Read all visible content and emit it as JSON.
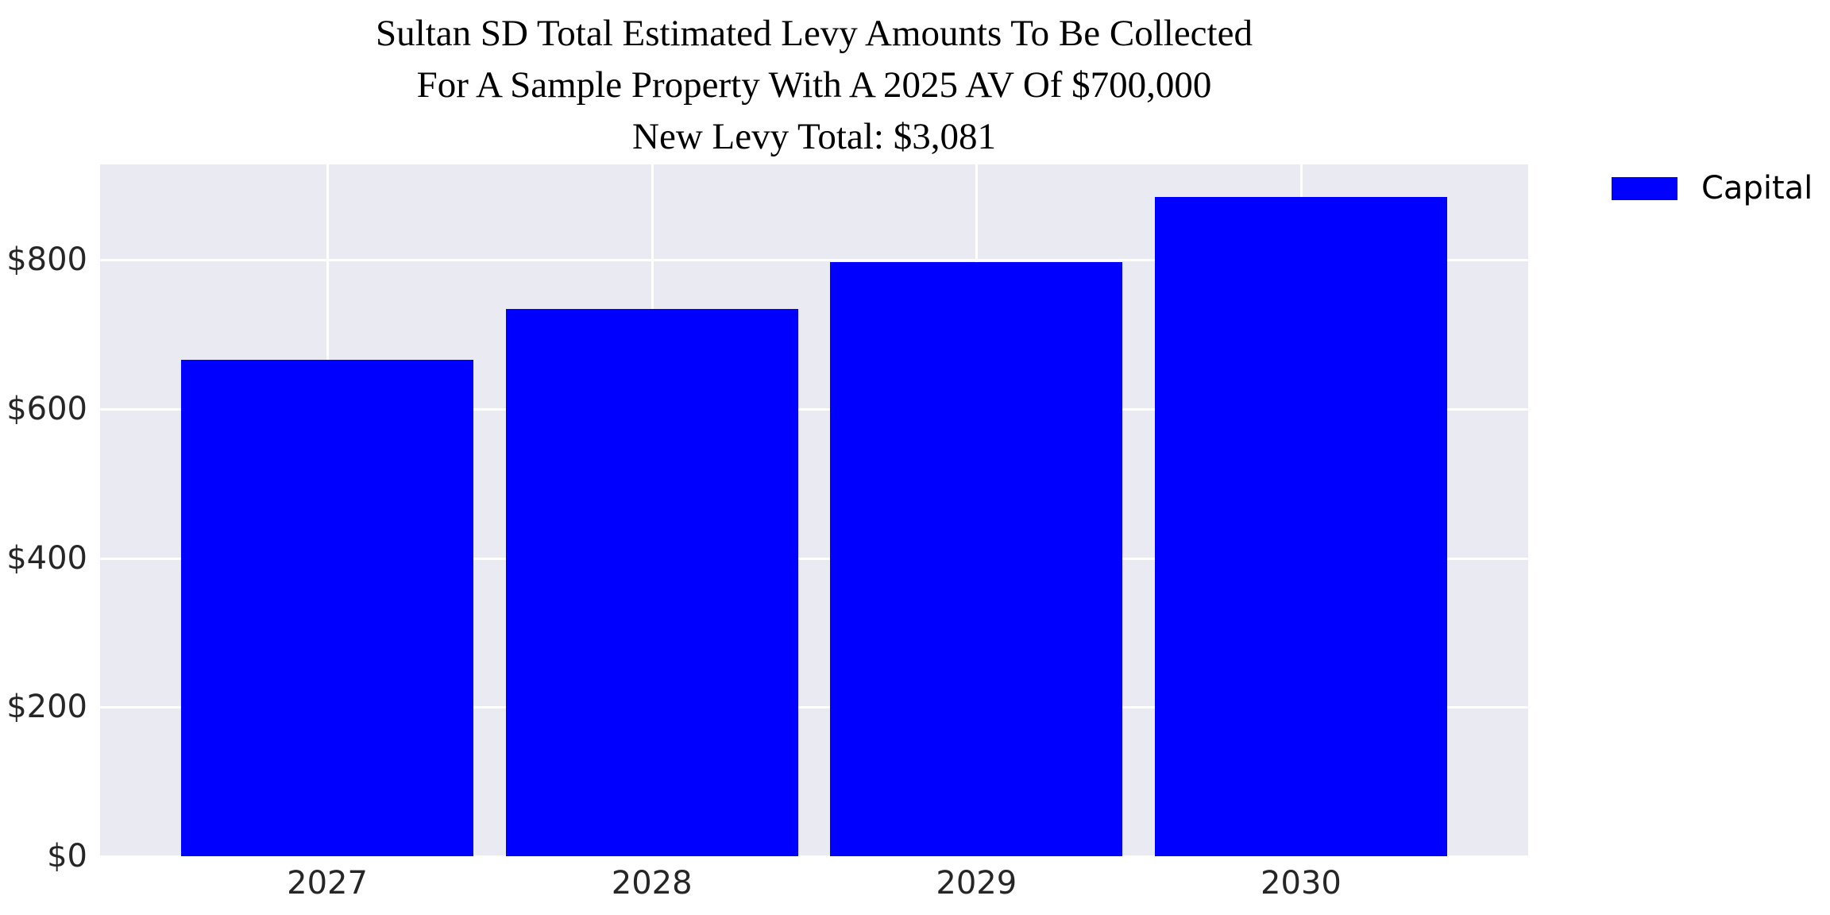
{
  "chart_data": {
    "type": "bar",
    "title_lines": [
      "Sultan SD Total Estimated Levy Amounts To Be Collected",
      "For A Sample Property With A 2025 AV Of $700,000",
      "New Levy Total: $3,081"
    ],
    "categories": [
      "2027",
      "2028",
      "2029",
      "2030"
    ],
    "series": [
      {
        "name": "Capital",
        "values": [
          666,
          734,
          797,
          884
        ],
        "color": "#0000ff"
      }
    ],
    "new_levy_total": "$3,081",
    "xlabel": "",
    "ylabel": "",
    "xlim": [
      -0.7,
      3.7
    ],
    "ylim": [
      0,
      928
    ],
    "yticks": [
      0,
      200,
      400,
      600,
      800
    ],
    "ytick_labels": [
      "$0",
      "$200",
      "$400",
      "$600",
      "$800"
    ],
    "bar_width_frac": 0.9,
    "grid": true,
    "legend": {
      "position": "upper-right-outside",
      "entries": [
        {
          "label": "Capital",
          "color": "#0000ff"
        }
      ]
    },
    "colors": {
      "figure_bg": "#ffffff",
      "plot_bg": "#eaeaf2",
      "gridline": "#ffffff",
      "tick_text": "#262626",
      "title_text": "#000000"
    }
  }
}
